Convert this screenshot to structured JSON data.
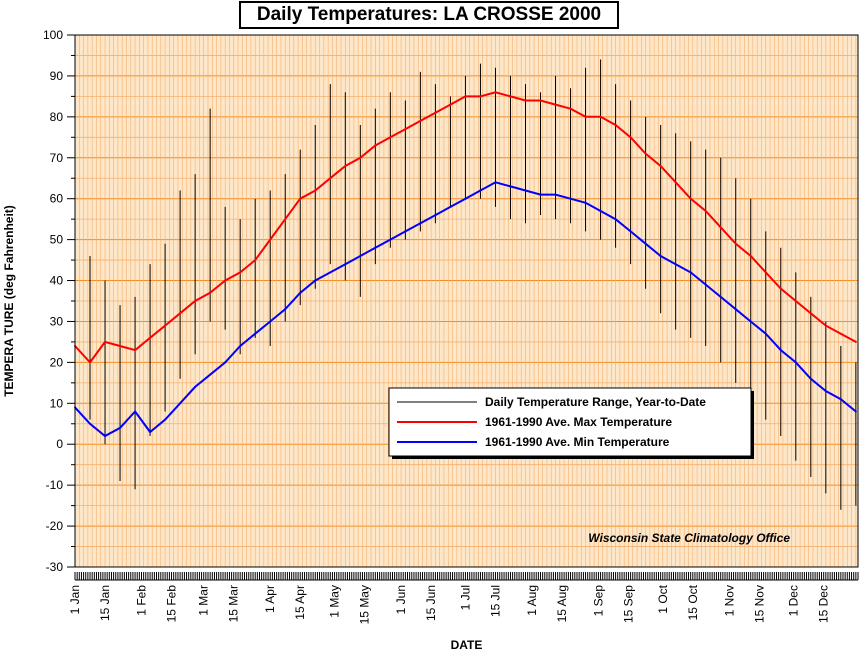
{
  "chart_data": {
    "type": "line",
    "title": "Daily Temperatures: LA CROSSE 2000",
    "xlabel": "DATE",
    "ylabel": "TEMPERA TURE (deg Fahrenheit)",
    "ylim": [
      -30,
      100
    ],
    "yticks": [
      -30,
      -20,
      -10,
      0,
      10,
      20,
      30,
      40,
      50,
      60,
      70,
      80,
      90,
      100
    ],
    "x_tick_labels": [
      "1 Jan",
      "15 Jan",
      "1 Feb",
      "15 Feb",
      "1 Mar",
      "15 Mar",
      "1 Apr",
      "15 Apr",
      "1 May",
      "15 May",
      "1 Jun",
      "15 Jun",
      "1 Jul",
      "15 Jul",
      "1 Aug",
      "15 Aug",
      "1 Sep",
      "15 Sep",
      "1 Oct",
      "15 Oct",
      "1 Nov",
      "15 Nov",
      "1 Dec",
      "15 Dec"
    ],
    "x_tick_days": [
      1,
      15,
      32,
      46,
      61,
      75,
      92,
      106,
      122,
      136,
      153,
      167,
      183,
      197,
      214,
      228,
      245,
      259,
      275,
      289,
      306,
      320,
      336,
      350
    ],
    "days_in_year": 366,
    "grid": true,
    "legend_position": "center-right",
    "series": [
      {
        "name": "Daily Temperature Range, Year-to-Date",
        "kind": "range",
        "color": "#000000",
        "x": [
          1,
          8,
          15,
          22,
          29,
          36,
          43,
          50,
          57,
          64,
          71,
          78,
          85,
          92,
          99,
          106,
          113,
          120,
          127,
          134,
          141,
          148,
          155,
          162,
          169,
          176,
          183,
          190,
          197,
          204,
          211,
          218,
          225,
          232,
          239,
          246,
          253,
          260,
          267,
          274,
          281,
          288,
          295,
          302,
          309,
          316,
          323,
          330,
          337,
          344,
          351,
          358,
          365
        ],
        "high": [
          41,
          46,
          40,
          34,
          36,
          44,
          49,
          62,
          66,
          82,
          58,
          55,
          60,
          62,
          66,
          72,
          78,
          88,
          86,
          78,
          82,
          86,
          84,
          91,
          88,
          85,
          90,
          93,
          92,
          90,
          88,
          86,
          90,
          87,
          92,
          94,
          88,
          84,
          80,
          78,
          76,
          74,
          72,
          70,
          65,
          60,
          52,
          48,
          42,
          36,
          30,
          24,
          20
        ],
        "low": [
          4,
          6,
          0,
          -9,
          -11,
          2,
          8,
          16,
          22,
          30,
          28,
          22,
          26,
          24,
          30,
          34,
          38,
          44,
          40,
          36,
          44,
          48,
          50,
          52,
          54,
          58,
          60,
          60,
          58,
          55,
          54,
          56,
          55,
          54,
          52,
          50,
          48,
          44,
          38,
          32,
          28,
          26,
          24,
          20,
          15,
          10,
          6,
          2,
          -4,
          -8,
          -12,
          -16,
          -15
        ]
      },
      {
        "name": "1961-1990 Ave. Max Temperature",
        "kind": "line",
        "color": "#ff0000",
        "x": [
          1,
          8,
          15,
          22,
          29,
          36,
          43,
          50,
          57,
          64,
          71,
          78,
          85,
          92,
          99,
          106,
          113,
          120,
          127,
          134,
          141,
          148,
          155,
          162,
          169,
          176,
          183,
          190,
          197,
          204,
          211,
          218,
          225,
          232,
          239,
          246,
          253,
          260,
          267,
          274,
          281,
          288,
          295,
          302,
          309,
          316,
          323,
          330,
          337,
          344,
          351,
          358,
          365
        ],
        "values": [
          24,
          20,
          25,
          24,
          23,
          26,
          29,
          32,
          35,
          37,
          40,
          42,
          45,
          50,
          55,
          60,
          62,
          65,
          68,
          70,
          73,
          75,
          77,
          79,
          81,
          83,
          85,
          85,
          86,
          85,
          84,
          84,
          83,
          82,
          80,
          80,
          78,
          75,
          71,
          68,
          64,
          60,
          57,
          53,
          49,
          46,
          42,
          38,
          35,
          32,
          29,
          27,
          25
        ]
      },
      {
        "name": "1961-1990 Ave. Min Temperature",
        "kind": "line",
        "color": "#0000ff",
        "x": [
          1,
          8,
          15,
          22,
          29,
          36,
          43,
          50,
          57,
          64,
          71,
          78,
          85,
          92,
          99,
          106,
          113,
          120,
          127,
          134,
          141,
          148,
          155,
          162,
          169,
          176,
          183,
          190,
          197,
          204,
          211,
          218,
          225,
          232,
          239,
          246,
          253,
          260,
          267,
          274,
          281,
          288,
          295,
          302,
          309,
          316,
          323,
          330,
          337,
          344,
          351,
          358,
          365
        ],
        "values": [
          9,
          5,
          2,
          4,
          8,
          3,
          6,
          10,
          14,
          17,
          20,
          24,
          27,
          30,
          33,
          37,
          40,
          42,
          44,
          46,
          48,
          50,
          52,
          54,
          56,
          58,
          60,
          62,
          64,
          63,
          62,
          61,
          61,
          60,
          59,
          57,
          55,
          52,
          49,
          46,
          44,
          42,
          39,
          36,
          33,
          30,
          27,
          23,
          20,
          16,
          13,
          11,
          8
        ]
      }
    ],
    "annotation": "Wisconsin State Climatology Office",
    "colors": {
      "plot_background": "#fde7c8",
      "major_grid": "#f28c20",
      "minor_grid": "#f5b070"
    }
  }
}
